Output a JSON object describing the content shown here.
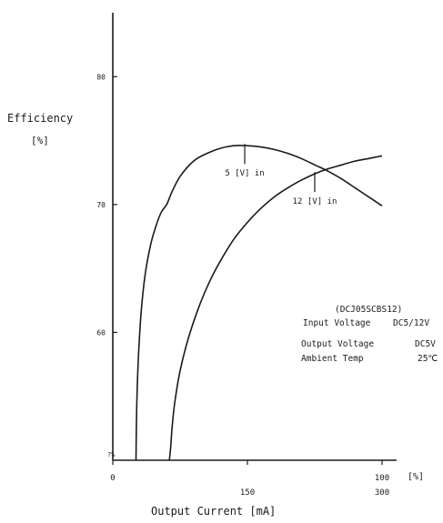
{
  "chart_data": {
    "type": "line",
    "ylabel_line1": "Efficiency",
    "ylabel_line2": "[%]",
    "xlabel": "Output Current [mA]",
    "y_unit_bottom": "?%",
    "x_unit_right": "[%]",
    "ylim": [
      50,
      85
    ],
    "xlim": [
      0,
      100
    ],
    "y_ticks": [
      {
        "value": 60,
        "label": "60"
      },
      {
        "value": 70,
        "label": "70"
      },
      {
        "value": 80,
        "label": "80"
      }
    ],
    "x_ticks_percent": [
      {
        "value": 0,
        "label": "0"
      },
      {
        "value": 100,
        "label": "100"
      }
    ],
    "x_ticks_current": [
      {
        "value": 50,
        "label": "150"
      },
      {
        "value": 100,
        "label": "300"
      }
    ],
    "grid": false,
    "series": [
      {
        "name": "5 [V] in",
        "x": [
          8.6,
          8.7,
          9.0,
          9.5,
          10.5,
          12,
          14,
          16,
          18,
          20,
          22,
          25,
          30,
          35,
          40,
          45,
          50,
          55,
          60,
          65,
          70,
          75,
          80,
          85,
          90,
          95,
          100
        ],
        "y": [
          50.0,
          52.0,
          55.0,
          58.0,
          61.5,
          64.5,
          66.8,
          68.3,
          69.4,
          70.0,
          71.0,
          72.2,
          73.4,
          74.0,
          74.4,
          74.6,
          74.6,
          74.5,
          74.3,
          74.0,
          73.6,
          73.1,
          72.6,
          72.0,
          71.3,
          70.6,
          69.9
        ]
      },
      {
        "name": "12 [V] in",
        "x": [
          21,
          21.5,
          22,
          23,
          25,
          28,
          32,
          36,
          40,
          45,
          50,
          55,
          60,
          65,
          70,
          75,
          80,
          85,
          90,
          95,
          100
        ],
        "y": [
          50.0,
          51.0,
          52.5,
          54.5,
          57.0,
          59.5,
          62.0,
          64.0,
          65.6,
          67.3,
          68.6,
          69.7,
          70.6,
          71.3,
          71.9,
          72.4,
          72.8,
          73.1,
          73.4,
          73.6,
          73.8
        ]
      }
    ],
    "annotations": [
      {
        "series": "5 [V] in",
        "label": "5 [V] in",
        "at_x": 49
      },
      {
        "series": "12 [V] in",
        "label": "12 [V] in",
        "at_x": 75
      }
    ],
    "info_box": {
      "model": "(DCJ05SCBS12)",
      "rows": [
        {
          "label": "Input Voltage",
          "value": "DC5/12V"
        },
        {
          "label": "Output Voltage",
          "value": "DC5V"
        },
        {
          "label": "Ambient Temp",
          "value": "25℃"
        }
      ]
    }
  }
}
